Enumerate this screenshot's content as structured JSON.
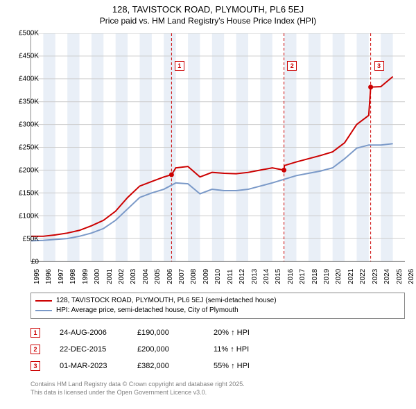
{
  "title": "128, TAVISTOCK ROAD, PLYMOUTH, PL6 5EJ",
  "subtitle": "Price paid vs. HM Land Registry's House Price Index (HPI)",
  "chart": {
    "type": "line",
    "background_color": "#ffffff",
    "xlim": [
      1995,
      2026
    ],
    "ylim": [
      0,
      500000
    ],
    "ytick_step": 50000,
    "y_ticks": [
      0,
      50000,
      100000,
      150000,
      200000,
      250000,
      300000,
      350000,
      400000,
      450000,
      500000
    ],
    "y_tick_labels": [
      "£0",
      "£50K",
      "£100K",
      "£150K",
      "£200K",
      "£250K",
      "£300K",
      "£350K",
      "£400K",
      "£450K",
      "£500K"
    ],
    "x_ticks": [
      1995,
      1996,
      1997,
      1998,
      1999,
      2000,
      2001,
      2002,
      2003,
      2004,
      2005,
      2006,
      2007,
      2008,
      2009,
      2010,
      2011,
      2012,
      2013,
      2014,
      2015,
      2016,
      2017,
      2018,
      2019,
      2020,
      2021,
      2022,
      2023,
      2024,
      2025,
      2026
    ],
    "grid_color": "#cccccc",
    "alt_band_color": "#e9eff7",
    "vline_color": "#cc0000",
    "vline_dash": "4,3",
    "axis_fontsize": 10,
    "series": [
      {
        "name": "price_paid",
        "label": "128, TAVISTOCK ROAD, PLYMOUTH, PL6 5EJ (semi-detached house)",
        "color": "#cc0000",
        "line_width": 2,
        "x": [
          1995,
          1996,
          1997,
          1998,
          1999,
          2000,
          2001,
          2002,
          2003,
          2004,
          2005,
          2006,
          2006.64,
          2007,
          2008,
          2009,
          2010,
          2011,
          2012,
          2013,
          2014,
          2015,
          2015.97,
          2016,
          2017,
          2018,
          2019,
          2020,
          2021,
          2022,
          2023,
          2023.16,
          2024,
          2025
        ],
        "y": [
          55000,
          55000,
          58000,
          62000,
          68000,
          78000,
          90000,
          110000,
          140000,
          165000,
          175000,
          185000,
          190000,
          205000,
          208000,
          185000,
          195000,
          193000,
          192000,
          195000,
          200000,
          205000,
          200000,
          210000,
          218000,
          225000,
          232000,
          240000,
          260000,
          300000,
          320000,
          382000,
          383000,
          405000
        ]
      },
      {
        "name": "hpi",
        "label": "HPI: Average price, semi-detached house, City of Plymouth",
        "color": "#7a99c8",
        "line_width": 2,
        "x": [
          1995,
          1996,
          1997,
          1998,
          1999,
          2000,
          2001,
          2002,
          2003,
          2004,
          2005,
          2006,
          2007,
          2008,
          2009,
          2010,
          2011,
          2012,
          2013,
          2014,
          2015,
          2016,
          2017,
          2018,
          2019,
          2020,
          2021,
          2022,
          2023,
          2024,
          2025
        ],
        "y": [
          45000,
          46000,
          48000,
          50000,
          55000,
          62000,
          72000,
          90000,
          115000,
          140000,
          150000,
          158000,
          172000,
          170000,
          148000,
          158000,
          155000,
          155000,
          158000,
          165000,
          172000,
          180000,
          188000,
          193000,
          198000,
          205000,
          225000,
          248000,
          255000,
          255000,
          258000
        ]
      }
    ],
    "markers_on_chart": [
      {
        "num": "1",
        "x": 2006.64,
        "badge_y": 440000
      },
      {
        "num": "2",
        "x": 2015.97,
        "badge_y": 440000
      },
      {
        "num": "3",
        "x": 2023.16,
        "badge_y": 440000
      }
    ],
    "sale_points": [
      {
        "x": 2006.64,
        "y": 190000
      },
      {
        "x": 2015.97,
        "y": 200000
      },
      {
        "x": 2023.16,
        "y": 382000
      }
    ]
  },
  "legend": {
    "items": [
      {
        "color": "#cc0000",
        "label": "128, TAVISTOCK ROAD, PLYMOUTH, PL6 5EJ (semi-detached house)"
      },
      {
        "color": "#7a99c8",
        "label": "HPI: Average price, semi-detached house, City of Plymouth"
      }
    ]
  },
  "events": [
    {
      "num": "1",
      "date": "24-AUG-2006",
      "price": "£190,000",
      "diff": "20% ↑ HPI"
    },
    {
      "num": "2",
      "date": "22-DEC-2015",
      "price": "£200,000",
      "diff": "11% ↑ HPI"
    },
    {
      "num": "3",
      "date": "01-MAR-2023",
      "price": "£382,000",
      "diff": "55% ↑ HPI"
    }
  ],
  "footer": {
    "line1": "Contains HM Land Registry data © Crown copyright and database right 2025.",
    "line2": "This data is licensed under the Open Government Licence v3.0."
  }
}
